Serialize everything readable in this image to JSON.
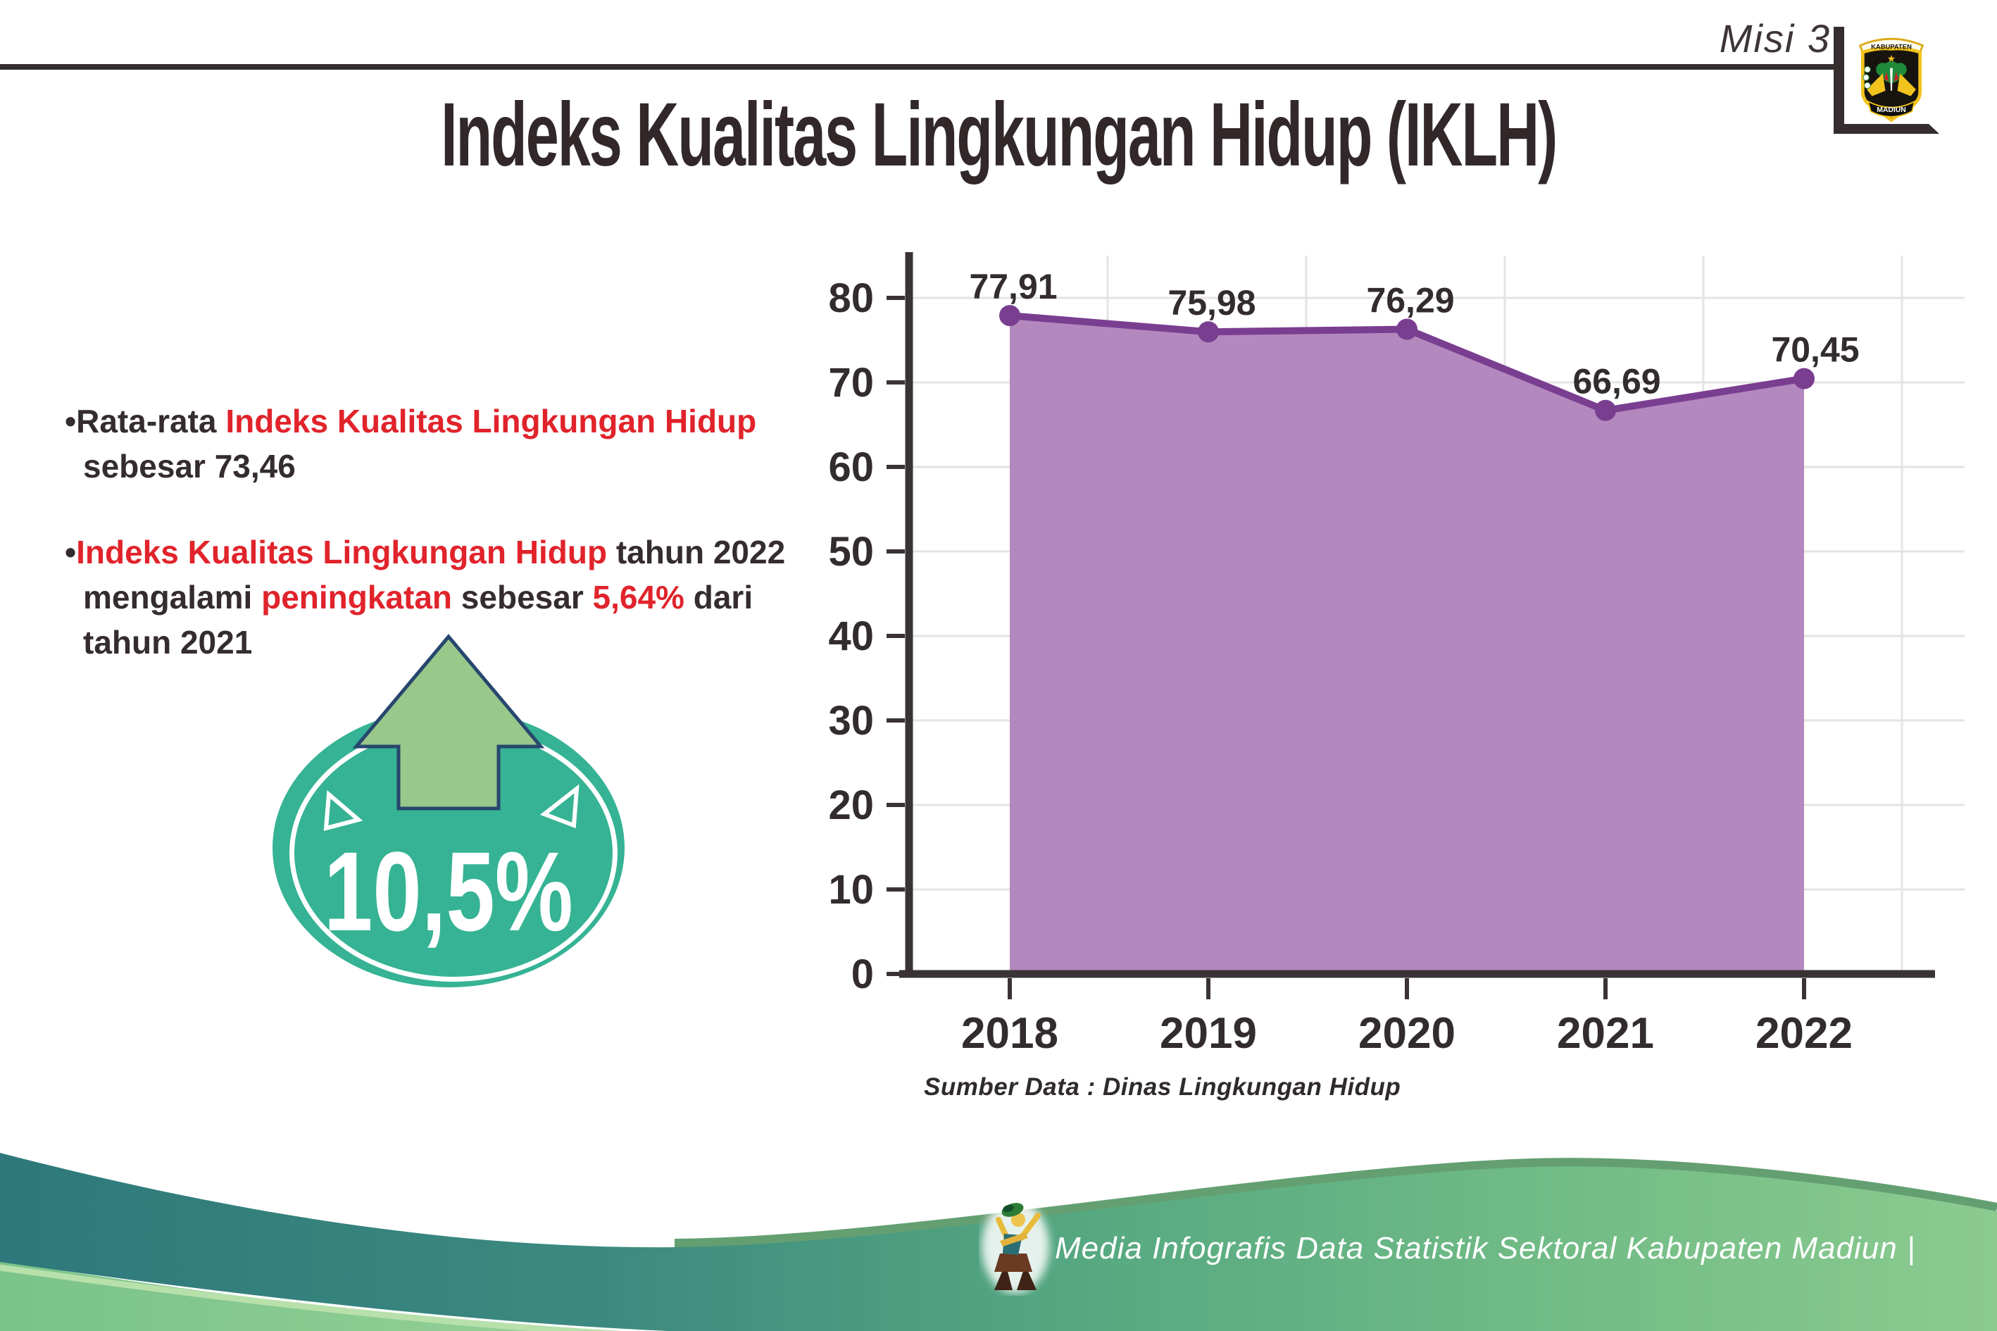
{
  "header": {
    "misi": "Misi 3",
    "title": "Indeks Kualitas Lingkungan Hidup (IKLH)",
    "logo": {
      "top": "KABUPATEN",
      "bottom": "MADIUN"
    }
  },
  "bullets": {
    "b1": {
      "bullet": "•",
      "s1": "Rata-rata ",
      "s2": "Indeks Kualitas Lingkungan Hidup",
      "line2": "sebesar 73,46"
    },
    "b2": {
      "bullet": "•",
      "s1": "Indeks Kualitas Lingkungan Hidup",
      "s2": " tahun 2022",
      "l2s1": "mengalami ",
      "l2s2": "peningkatan",
      "l2s3": " sebesar ",
      "l2s4": "5,64%",
      "l2s5": " dari",
      "line3": "tahun 2021"
    }
  },
  "badge": {
    "value": "10,5%"
  },
  "chart_data": {
    "type": "area",
    "categories": [
      "2018",
      "2019",
      "2020",
      "2021",
      "2022"
    ],
    "values": [
      77.91,
      75.98,
      76.29,
      66.69,
      70.45
    ],
    "value_labels": [
      "77,91",
      "75,98",
      "76,29",
      "66,69",
      "70,45"
    ],
    "title": "",
    "xlabel": "",
    "ylabel": "",
    "ylim": [
      0,
      80
    ],
    "yticks": [
      0,
      10,
      20,
      30,
      40,
      50,
      60,
      70,
      80
    ],
    "grid": true,
    "legend": "none",
    "source": "Sumber Data : Dinas Lingkungan Hidup",
    "colors": {
      "area": "#b388be",
      "line": "#7a3e91",
      "marker": "#7a3e91",
      "axis": "#3a3335",
      "gridline": "#e5e3e4",
      "label": "#322c2e"
    }
  },
  "footer": {
    "caption": "Media Infografis Data Statistik Sektoral Kabupaten Madiun |"
  },
  "colors": {
    "accent_red": "#e1232b",
    "badge_teal": "#35b394",
    "arrow_green": "#9ac78a",
    "footer_teal": "#2e787b",
    "footer_green": "#8bcb90"
  }
}
